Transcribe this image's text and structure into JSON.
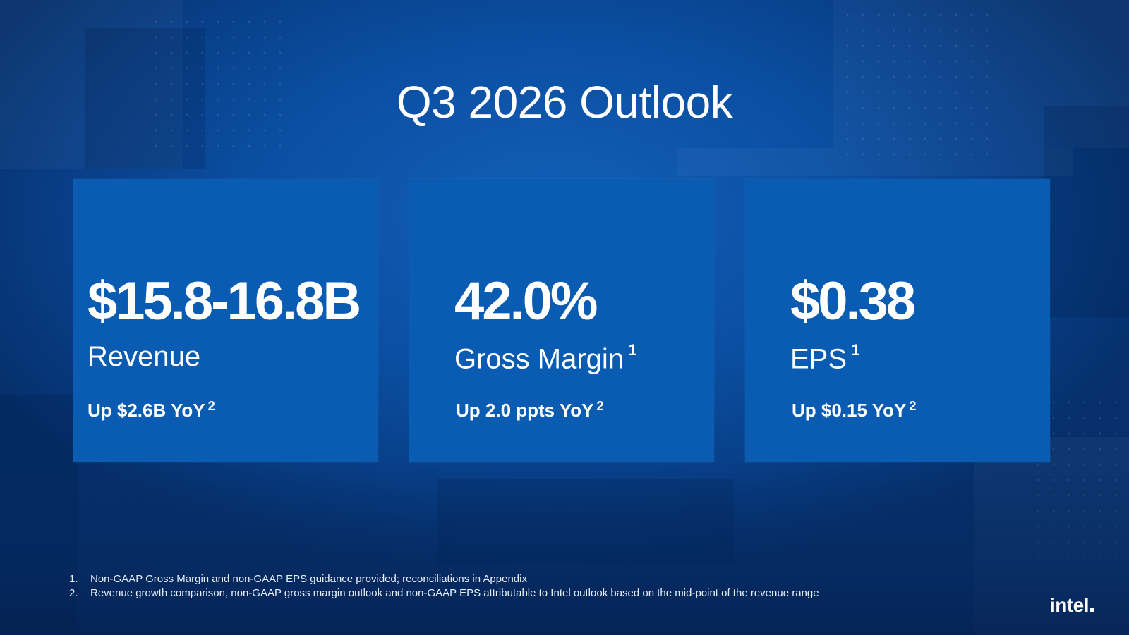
{
  "slide": {
    "title": "Q3 2026 Outlook",
    "cards": [
      {
        "value": "$15.8-16.8B",
        "metric": "Revenue",
        "metric_note": "",
        "growth": "Up $2.6B YoY",
        "growth_note": "2"
      },
      {
        "value": "42.0%",
        "metric": "Gross Margin",
        "metric_note": "1",
        "growth": "Up 2.0 ppts YoY",
        "growth_note": "2"
      },
      {
        "value": "$0.38",
        "metric": "EPS",
        "metric_note": "1",
        "growth": "Up $0.15 YoY",
        "growth_note": "2"
      }
    ],
    "footnotes": [
      {
        "number": "1.",
        "text": "Non-GAAP Gross Margin and non-GAAP EPS guidance provided; reconciliations in Appendix"
      },
      {
        "number": "2.",
        "text": "Revenue growth comparison, non-GAAP gross margin outlook and non-GAAP EPS attributable to Intel outlook based on the mid-point of the revenue range"
      }
    ],
    "logo": "intel"
  },
  "colors": {
    "background": "#0b4fa3",
    "card": "#0a5cb3",
    "text": "#ffffff"
  }
}
